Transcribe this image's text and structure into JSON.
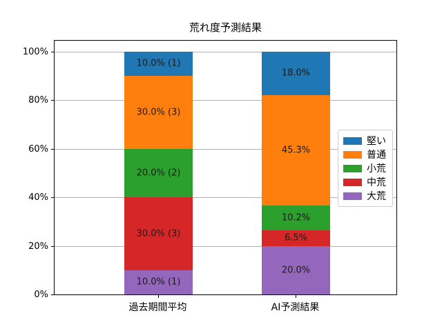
{
  "chart_data": {
    "type": "bar",
    "stacked": true,
    "title": "荒れ度予測結果",
    "xlabel": "",
    "ylabel": "",
    "categories": [
      "過去期間平均",
      "AI予測結果"
    ],
    "series": [
      {
        "name": "堅い",
        "color": "#1f77b4",
        "values": [
          10.0,
          18.0
        ],
        "labels": [
          "10.0% (1)",
          "18.0%"
        ]
      },
      {
        "name": "普通",
        "color": "#ff7f0e",
        "values": [
          30.0,
          45.3
        ],
        "labels": [
          "30.0% (3)",
          "45.3%"
        ]
      },
      {
        "name": "小荒",
        "color": "#2ca02c",
        "values": [
          20.0,
          10.2
        ],
        "labels": [
          "20.0% (2)",
          "10.2%"
        ]
      },
      {
        "name": "中荒",
        "color": "#d62728",
        "values": [
          30.0,
          6.5
        ],
        "labels": [
          "30.0% (3)",
          "6.5%"
        ]
      },
      {
        "name": "大荒",
        "color": "#9467bd",
        "values": [
          10.0,
          20.0
        ],
        "labels": [
          "10.0% (1)",
          "20.0%"
        ]
      }
    ],
    "stack_order_bottom_to_top": [
      "大荒",
      "中荒",
      "小荒",
      "普通",
      "堅い"
    ],
    "yticks": [
      {
        "value": 0,
        "label": "0%"
      },
      {
        "value": 20,
        "label": "20%"
      },
      {
        "value": 40,
        "label": "40%"
      },
      {
        "value": 60,
        "label": "60%"
      },
      {
        "value": 80,
        "label": "80%"
      },
      {
        "value": 100,
        "label": "100%"
      }
    ],
    "ylim": [
      0,
      105
    ],
    "grid": true,
    "legend_position": "center right",
    "label_color": "#1a1a1a",
    "grid_color": "#b0b0b0"
  }
}
